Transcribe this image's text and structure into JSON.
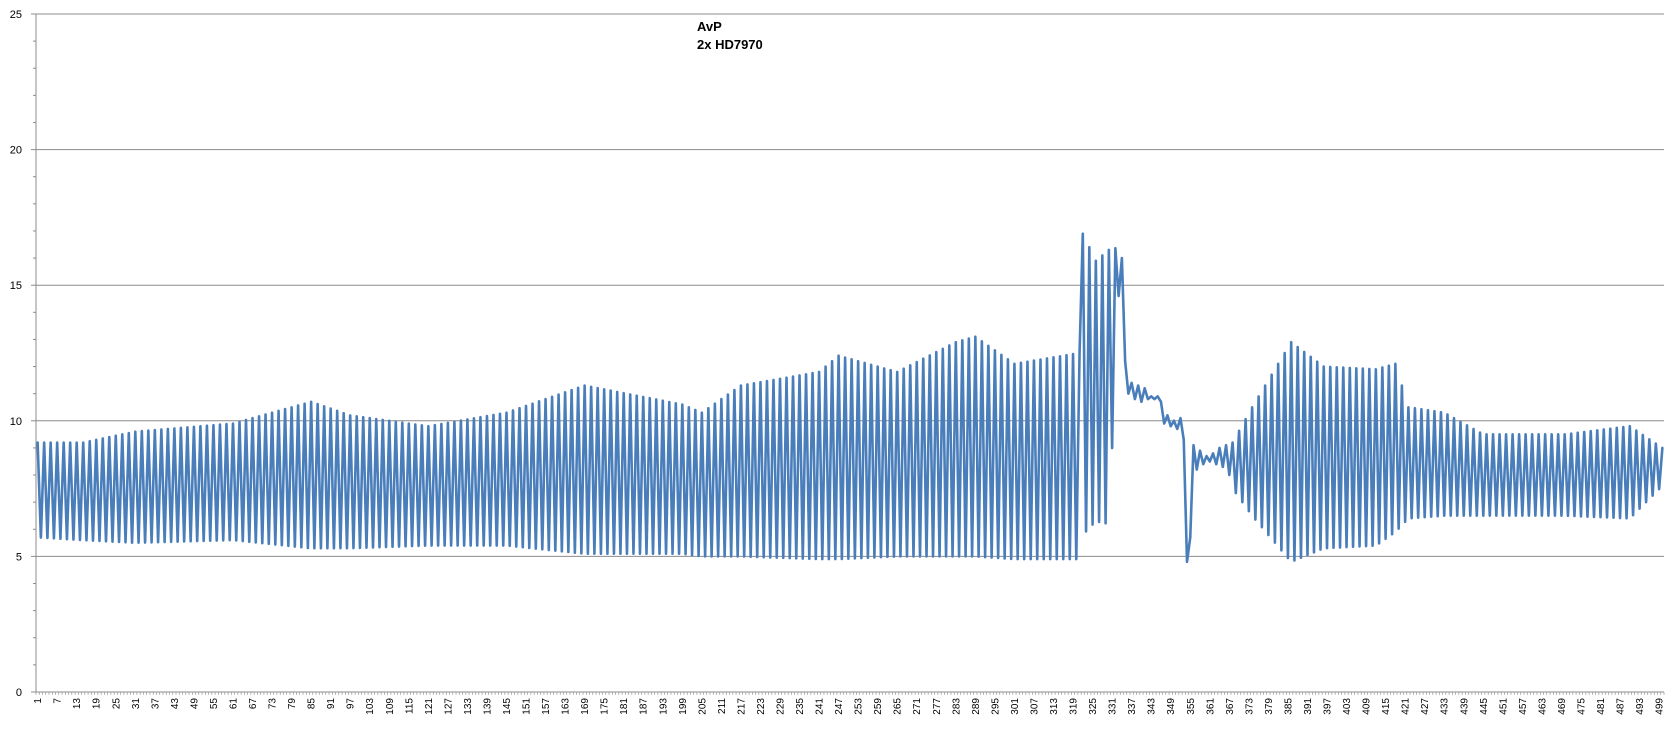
{
  "chart_data": {
    "type": "line",
    "title_lines": [
      "AvP",
      "2x HD7970"
    ],
    "xlabel": "",
    "ylabel": "",
    "x_range": [
      1,
      500
    ],
    "ylim": [
      0,
      25
    ],
    "y_ticks": [
      0,
      5,
      10,
      15,
      20,
      25
    ],
    "x_tick_labels": [
      "1",
      "7",
      "13",
      "19",
      "25",
      "31",
      "37",
      "43",
      "49",
      "55",
      "61",
      "67",
      "73",
      "79",
      "85",
      "91",
      "97",
      "103",
      "109",
      "115",
      "121",
      "127",
      "133",
      "139",
      "145",
      "151",
      "157",
      "163",
      "169",
      "175",
      "181",
      "187",
      "193",
      "199",
      "205",
      "211",
      "217",
      "223",
      "229",
      "235",
      "241",
      "247",
      "253",
      "259",
      "265",
      "271",
      "277",
      "283",
      "289",
      "295",
      "301",
      "307",
      "313",
      "319",
      "325",
      "331",
      "337",
      "343",
      "349",
      "355",
      "361",
      "367",
      "373",
      "379",
      "385",
      "391",
      "397",
      "403",
      "409",
      "415",
      "421",
      "427",
      "433",
      "439",
      "445",
      "451",
      "457",
      "463",
      "469",
      "475",
      "481",
      "487",
      "493",
      "499"
    ],
    "grid": "horizontal",
    "legend": "none",
    "series": [
      {
        "color": "#4a7ebb",
        "segments": [
          {
            "x_start": 1,
            "x_end": 321,
            "mode": "oscillate",
            "period": 2,
            "high_env": [
              [
                1,
                9.2
              ],
              [
                15,
                9.2
              ],
              [
                31,
                9.6
              ],
              [
                61,
                9.9
              ],
              [
                85,
                10.7
              ],
              [
                97,
                10.2
              ],
              [
                121,
                9.8
              ],
              [
                145,
                10.3
              ],
              [
                169,
                11.3
              ],
              [
                199,
                10.6
              ],
              [
                205,
                10.3
              ],
              [
                217,
                11.3
              ],
              [
                241,
                11.8
              ],
              [
                247,
                12.4
              ],
              [
                265,
                11.8
              ],
              [
                283,
                12.9
              ],
              [
                289,
                13.1
              ],
              [
                301,
                12.1
              ],
              [
                321,
                12.5
              ]
            ],
            "low_env": [
              [
                1,
                5.7
              ],
              [
                15,
                5.6
              ],
              [
                31,
                5.5
              ],
              [
                61,
                5.6
              ],
              [
                85,
                5.3
              ],
              [
                97,
                5.3
              ],
              [
                121,
                5.4
              ],
              [
                145,
                5.4
              ],
              [
                169,
                5.1
              ],
              [
                199,
                5.1
              ],
              [
                205,
                5.0
              ],
              [
                217,
                5.0
              ],
              [
                241,
                4.9
              ],
              [
                247,
                4.9
              ],
              [
                265,
                5.0
              ],
              [
                283,
                5.0
              ],
              [
                289,
                5.0
              ],
              [
                301,
                4.9
              ],
              [
                321,
                4.9
              ]
            ]
          },
          {
            "x_start": 322,
            "x_end": 333,
            "mode": "oscillate",
            "period": 2,
            "high_env": [
              [
                322,
                16.9
              ],
              [
                326,
                15.9
              ],
              [
                330,
                16.3
              ],
              [
                333,
                16.4
              ]
            ],
            "low_env": [
              [
                322,
                5.8
              ],
              [
                326,
                6.3
              ],
              [
                330,
                6.2
              ],
              [
                333,
                14.6
              ]
            ]
          },
          {
            "mode": "points",
            "points": [
              [
                334,
                16.0
              ],
              [
                335,
                12.2
              ],
              [
                336,
                11.0
              ],
              [
                337,
                11.4
              ],
              [
                338,
                10.8
              ],
              [
                339,
                11.3
              ],
              [
                340,
                10.7
              ],
              [
                341,
                11.2
              ],
              [
                342,
                10.8
              ],
              [
                343,
                10.9
              ],
              [
                344,
                10.8
              ],
              [
                345,
                10.9
              ],
              [
                346,
                10.7
              ],
              [
                347,
                9.9
              ],
              [
                348,
                10.2
              ],
              [
                349,
                9.8
              ],
              [
                350,
                10.0
              ],
              [
                351,
                9.7
              ],
              [
                352,
                10.1
              ],
              [
                353,
                9.3
              ],
              [
                354,
                4.8
              ],
              [
                355,
                5.7
              ],
              [
                356,
                9.1
              ],
              [
                357,
                8.2
              ],
              [
                358,
                8.9
              ],
              [
                359,
                8.4
              ],
              [
                360,
                8.7
              ],
              [
                361,
                8.5
              ],
              [
                362,
                8.8
              ],
              [
                363,
                8.4
              ],
              [
                364,
                9.0
              ],
              [
                365,
                8.3
              ],
              [
                366,
                9.1
              ],
              [
                367,
                8.0
              ]
            ]
          },
          {
            "x_start": 368,
            "x_end": 500,
            "mode": "oscillate",
            "period": 2,
            "high_env": [
              [
                368,
                9.2
              ],
              [
                374,
                10.5
              ],
              [
                386,
                12.9
              ],
              [
                396,
                12.0
              ],
              [
                412,
                11.9
              ],
              [
                418,
                12.1
              ],
              [
                422,
                10.5
              ],
              [
                433,
                10.3
              ],
              [
                445,
                9.5
              ],
              [
                470,
                9.5
              ],
              [
                490,
                9.8
              ],
              [
                500,
                9.0
              ]
            ],
            "low_env": [
              [
                368,
                7.5
              ],
              [
                374,
                6.5
              ],
              [
                386,
                4.8
              ],
              [
                396,
                5.3
              ],
              [
                412,
                5.4
              ],
              [
                418,
                5.9
              ],
              [
                422,
                6.4
              ],
              [
                433,
                6.5
              ],
              [
                445,
                6.5
              ],
              [
                470,
                6.5
              ],
              [
                490,
                6.4
              ],
              [
                500,
                7.6
              ]
            ]
          }
        ]
      }
    ]
  }
}
